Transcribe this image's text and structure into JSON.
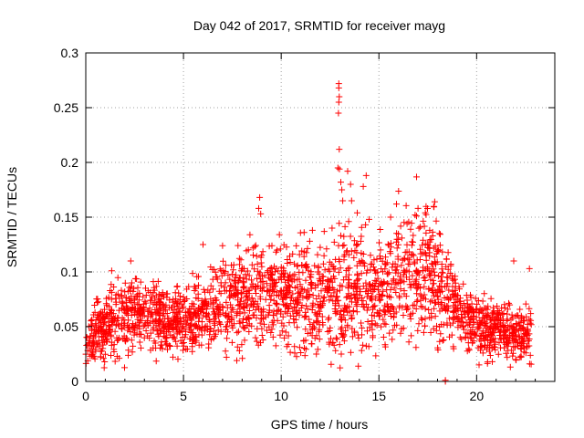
{
  "chart_data": {
    "type": "scatter",
    "title": "Day 042 of 2017, SRMTID for receiver mayg",
    "xlabel": "GPS time / hours",
    "ylabel": "SRMTID / TECUs",
    "xlim": [
      0,
      24
    ],
    "ylim": [
      0,
      0.3
    ],
    "xticks": [
      0,
      5,
      10,
      15,
      20
    ],
    "xtick_labels": [
      "0",
      "5",
      "10",
      "15",
      "20"
    ],
    "yticks": [
      0,
      0.05,
      0.1,
      0.15,
      0.2,
      0.25,
      0.3
    ],
    "ytick_labels": [
      "0",
      "0.05",
      "0.1",
      "0.15",
      "0.2",
      "0.25",
      "0.3"
    ],
    "grid": true,
    "marker": "+",
    "series": [
      {
        "name": "SRMTID",
        "color": "#ff0000",
        "profile_x": [
          0,
          0.5,
          1,
          1.5,
          2,
          2.5,
          3,
          3.5,
          4,
          4.5,
          5,
          5.5,
          6,
          6.5,
          7,
          7.5,
          8,
          8.5,
          9,
          9.5,
          10,
          10.5,
          11,
          11.5,
          12,
          12.5,
          13,
          13.5,
          14,
          14.5,
          15,
          15.5,
          16,
          16.5,
          17,
          17.5,
          18,
          18.5,
          19,
          19.5,
          20,
          20.5,
          21,
          21.5,
          22,
          22.5,
          22.8
        ],
        "profile_y": [
          0.037,
          0.042,
          0.05,
          0.058,
          0.062,
          0.063,
          0.062,
          0.058,
          0.055,
          0.055,
          0.057,
          0.06,
          0.063,
          0.066,
          0.07,
          0.072,
          0.074,
          0.076,
          0.077,
          0.076,
          0.078,
          0.08,
          0.081,
          0.08,
          0.078,
          0.077,
          0.085,
          0.082,
          0.078,
          0.076,
          0.082,
          0.088,
          0.092,
          0.094,
          0.095,
          0.092,
          0.088,
          0.08,
          0.065,
          0.057,
          0.052,
          0.05,
          0.048,
          0.045,
          0.042,
          0.043,
          0.048
        ],
        "profile_spread": [
          0.012,
          0.013,
          0.015,
          0.016,
          0.017,
          0.016,
          0.015,
          0.014,
          0.014,
          0.014,
          0.015,
          0.016,
          0.017,
          0.018,
          0.019,
          0.02,
          0.021,
          0.022,
          0.022,
          0.022,
          0.023,
          0.024,
          0.024,
          0.024,
          0.023,
          0.024,
          0.03,
          0.027,
          0.025,
          0.024,
          0.027,
          0.028,
          0.029,
          0.03,
          0.03,
          0.029,
          0.028,
          0.024,
          0.018,
          0.015,
          0.014,
          0.014,
          0.013,
          0.013,
          0.012,
          0.012,
          0.013
        ],
        "bulk_point_count": 2400,
        "outliers": [
          {
            "x": 12.95,
            "y": 0.272
          },
          {
            "x": 12.95,
            "y": 0.268
          },
          {
            "x": 12.97,
            "y": 0.26
          },
          {
            "x": 12.95,
            "y": 0.255
          },
          {
            "x": 12.93,
            "y": 0.245
          },
          {
            "x": 12.97,
            "y": 0.212
          },
          {
            "x": 12.9,
            "y": 0.195
          },
          {
            "x": 12.98,
            "y": 0.194
          },
          {
            "x": 13.05,
            "y": 0.182
          },
          {
            "x": 13.1,
            "y": 0.175
          },
          {
            "x": 13.15,
            "y": 0.165
          },
          {
            "x": 13.4,
            "y": 0.192
          },
          {
            "x": 13.55,
            "y": 0.18
          },
          {
            "x": 13.6,
            "y": 0.165
          },
          {
            "x": 14.2,
            "y": 0.178
          },
          {
            "x": 14.35,
            "y": 0.188
          },
          {
            "x": 8.9,
            "y": 0.168
          },
          {
            "x": 8.85,
            "y": 0.158
          },
          {
            "x": 8.95,
            "y": 0.153
          },
          {
            "x": 15.9,
            "y": 0.162
          },
          {
            "x": 17.0,
            "y": 0.158
          },
          {
            "x": 16.85,
            "y": 0.152
          },
          {
            "x": 15.6,
            "y": 0.15
          },
          {
            "x": 14.5,
            "y": 0.148
          },
          {
            "x": 12.2,
            "y": 0.137
          },
          {
            "x": 12.6,
            "y": 0.14
          },
          {
            "x": 11.6,
            "y": 0.138
          },
          {
            "x": 6.0,
            "y": 0.125
          },
          {
            "x": 7.0,
            "y": 0.124
          },
          {
            "x": 8.4,
            "y": 0.134
          },
          {
            "x": 21.9,
            "y": 0.11
          },
          {
            "x": 22.7,
            "y": 0.103
          },
          {
            "x": 2.3,
            "y": 0.11
          },
          {
            "x": 18.4,
            "y": 0.0
          },
          {
            "x": 18.4,
            "y": 0.001
          },
          {
            "x": 16.9,
            "y": 0.031
          },
          {
            "x": 11.8,
            "y": 0.025
          },
          {
            "x": 20.8,
            "y": 0.018
          },
          {
            "x": 22.0,
            "y": 0.02
          }
        ]
      }
    ]
  }
}
